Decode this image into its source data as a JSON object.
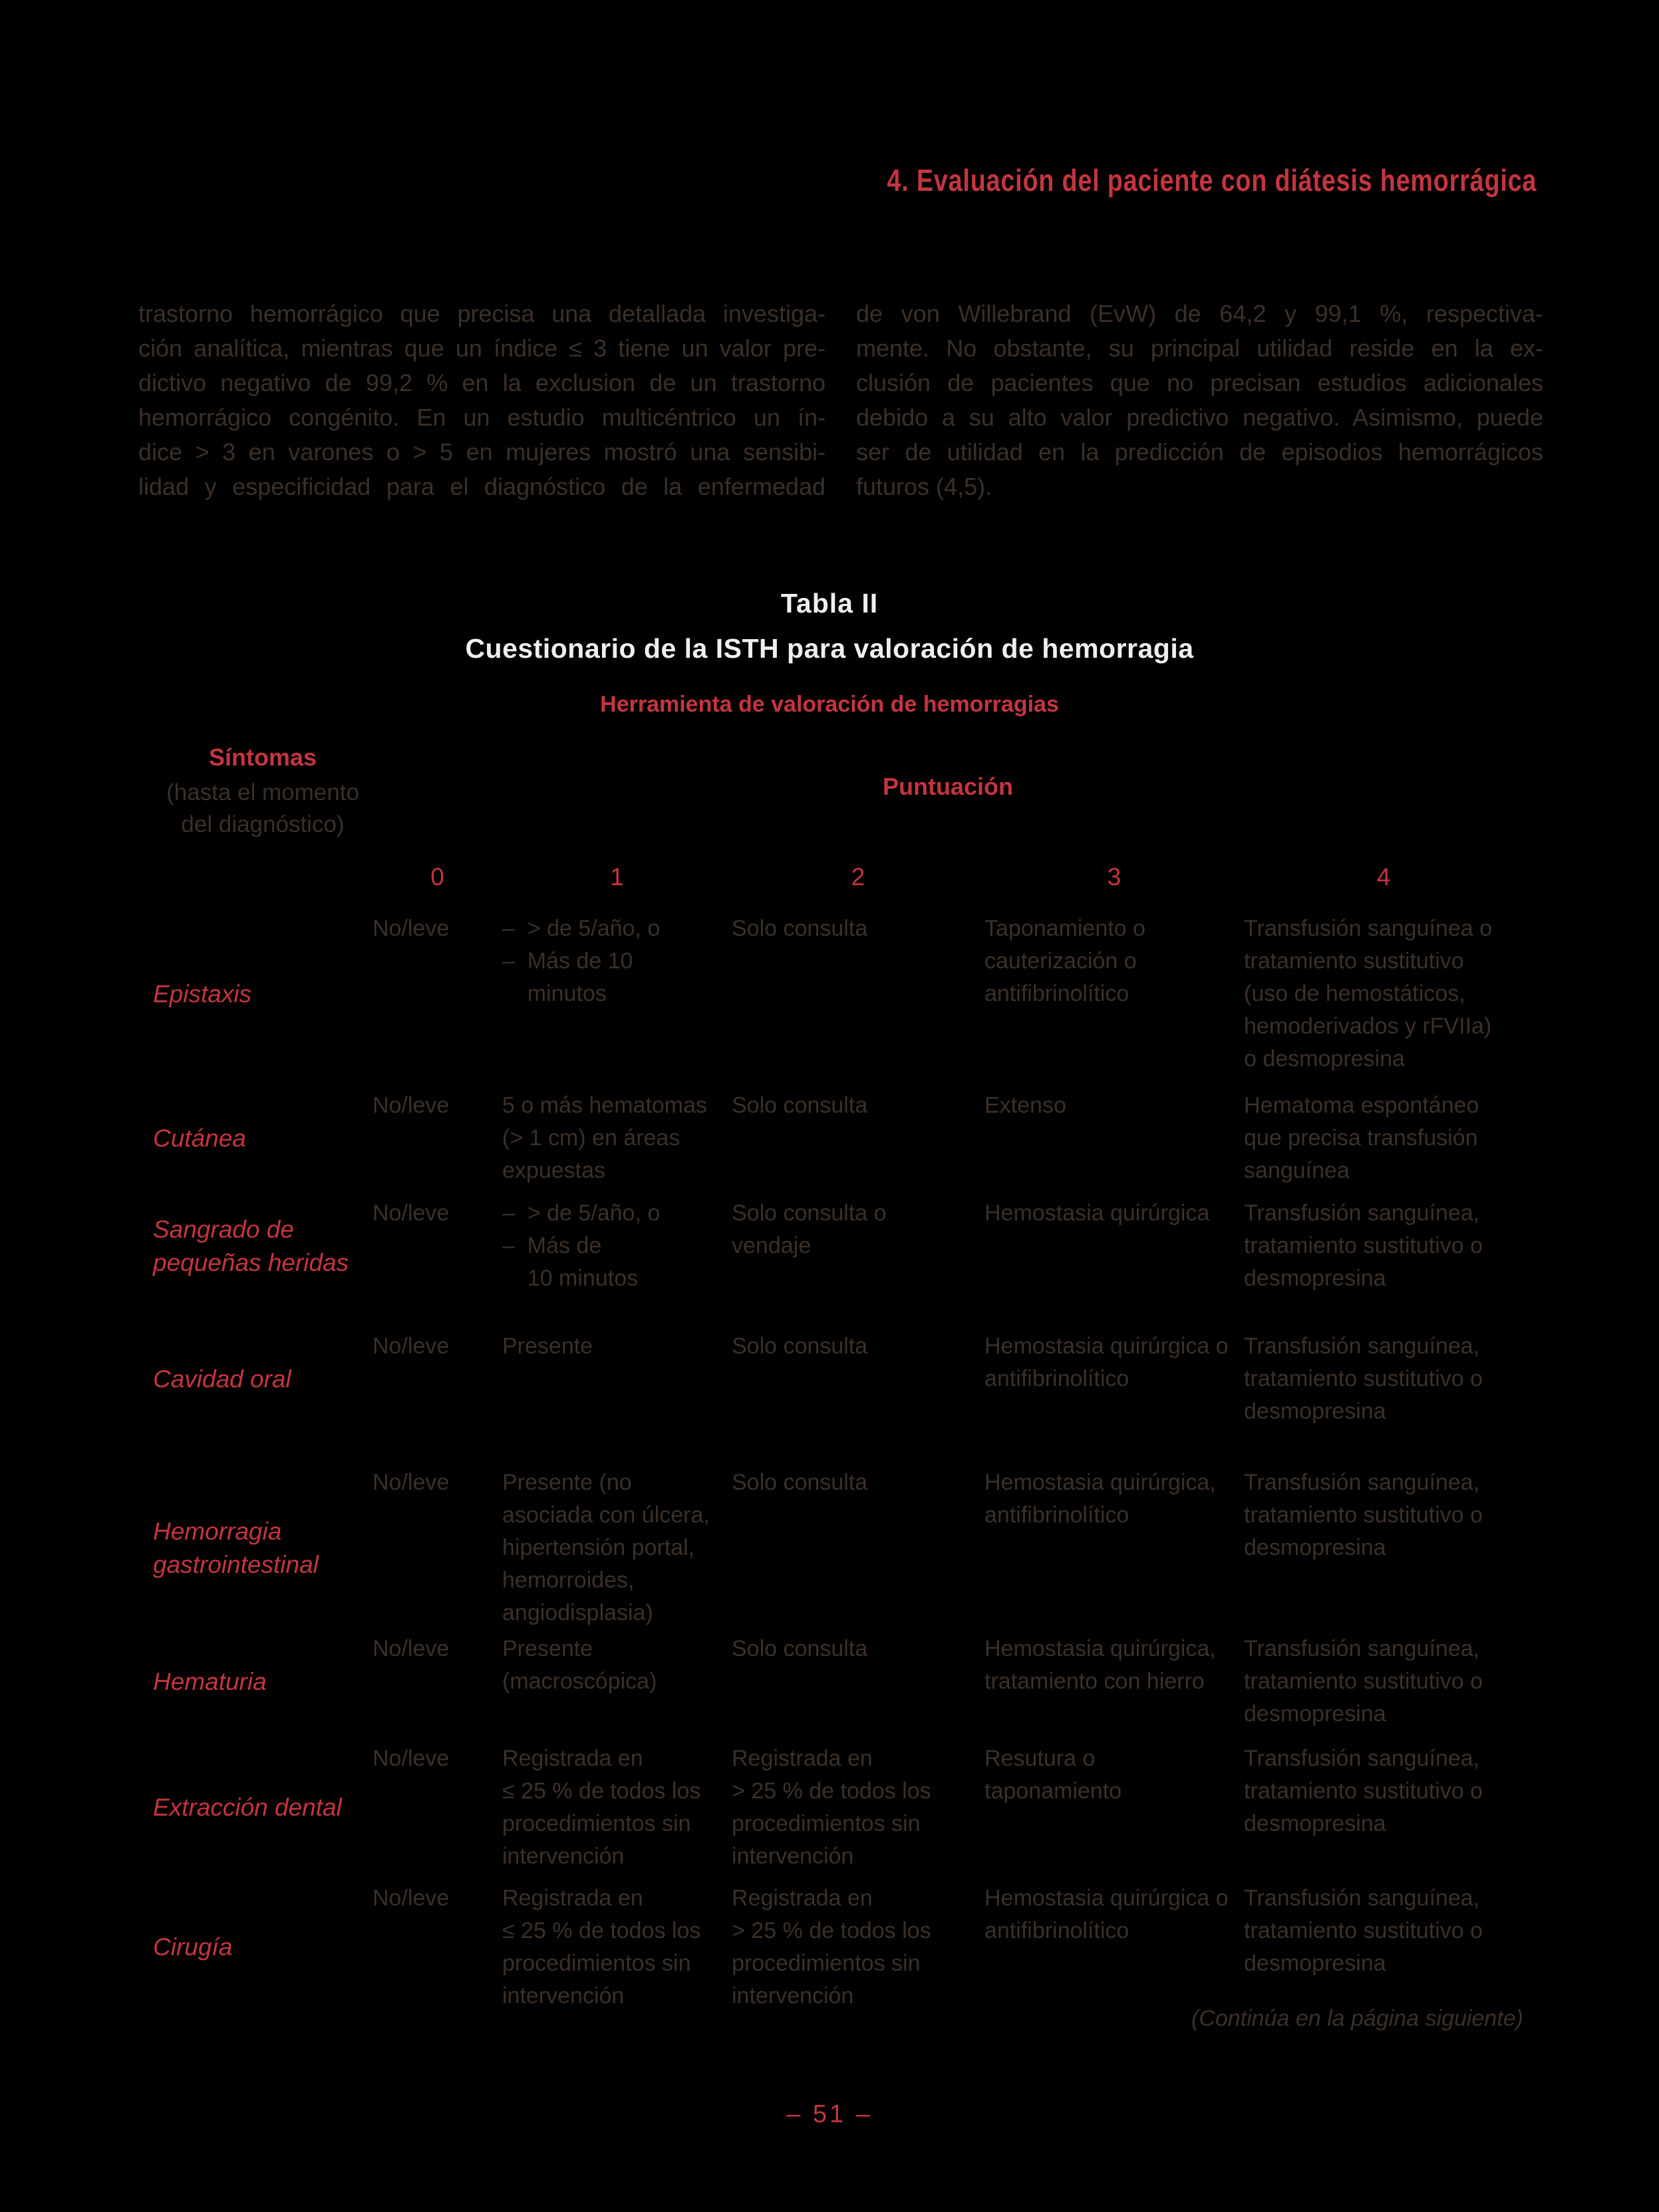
{
  "page": {
    "chapter_header": "4. Evaluación del paciente con diátesis hemorrágica",
    "page_number": "– 51 –"
  },
  "body": {
    "left_lines": [
      "trastorno hemorrágico que precisa una detallada investiga-",
      "ción analítica, mientras que un índice ≤ 3 tiene un valor pre-",
      "dictivo negativo de 99,2 % en la exclusion de un trastorno",
      "hemorrágico congénito. En un estudio multicéntrico un ín-",
      "dice > 3 en varones o > 5 en mujeres mostró una sensibi-",
      "lidad y especificidad para el diagnóstico de la enfermedad"
    ],
    "right_lines": [
      "de von Willebrand (EvW) de 64,2 y 99,1 %, respectiva-",
      "mente. No obstante, su principal utilidad reside en la ex-",
      "clusión de pacientes que no precisan estudios adicionales",
      "debido a su alto valor predictivo negativo. Asimismo, puede",
      "ser de utilidad en la predicción de episodios hemorrágicos",
      "futuros (4,5)."
    ]
  },
  "table": {
    "title_line1": "Tabla II",
    "title_line2": "Cuestionario de la ISTH para valoración de hemorragia",
    "tool_header": "Herramienta de valoración de hemorragias",
    "symptoms_label": "Síntomas",
    "symptoms_note": "(hasta el momento\ndel diagnóstico)",
    "score_label": "Puntuación",
    "score_columns": [
      "0",
      "1",
      "2",
      "3",
      "4"
    ],
    "rows": [
      {
        "symptom": "Epistaxis",
        "c0": "No/leve",
        "c1": "–  > de 5/año, o\n–  Más de 10\n    minutos",
        "c2": "Solo consulta",
        "c3": "Taponamiento o\ncauterización o\nantifibrinolítico",
        "c4": "Transfusión sanguínea o\ntratamiento sustitutivo\n(uso de hemostáticos,\nhemoderivados y rFVIIa)\no desmopresina"
      },
      {
        "symptom": "Cutánea",
        "c0": "No/leve",
        "c1": "5 o más hematomas\n(> 1 cm) en áreas\nexpuestas",
        "c2": "Solo consulta",
        "c3": "Extenso",
        "c4": "Hematoma espontáneo\nque precisa transfusión\nsanguínea"
      },
      {
        "symptom": "Sangrado de\npequeñas heridas",
        "c0": "No/leve",
        "c1": "–  > de 5/año, o\n–  Más de\n    10 minutos",
        "c2": "Solo consulta o\nvendaje",
        "c3": "Hemostasia quirúrgica",
        "c4": "Transfusión sanguínea,\ntratamiento sustitutivo o\ndesmopresina"
      },
      {
        "symptom": "Cavidad oral",
        "c0": "No/leve",
        "c1": "Presente",
        "c2": "Solo consulta",
        "c3": "Hemostasia quirúrgica o\nantifibrinolítico",
        "c4": "Transfusión sanguínea,\ntratamiento sustitutivo o\ndesmopresina"
      },
      {
        "symptom": "Hemorragia\ngastrointestinal",
        "c0": "No/leve",
        "c1": "Presente (no\nasociada con úlcera,\nhipertensión portal,\nhemorroides,\nangiodisplasia)",
        "c2": "Solo consulta",
        "c3": "Hemostasia quirúrgica,\nantifibrinolítico",
        "c4": "Transfusión sanguínea,\ntratamiento sustitutivo o\ndesmopresina"
      },
      {
        "symptom": "Hematuria",
        "c0": "No/leve",
        "c1": "Presente\n(macroscópica)",
        "c2": "Solo consulta",
        "c3": "Hemostasia quirúrgica,\ntratamiento con hierro",
        "c4": "Transfusión sanguínea,\ntratamiento sustitutivo o\ndesmopresina"
      },
      {
        "symptom": "Extracción dental",
        "c0": "No/leve",
        "c1": "Registrada en\n≤ 25 % de todos los\nprocedimientos sin\nintervención",
        "c2": "Registrada en\n> 25 % de todos los\nprocedimientos sin\nintervención",
        "c3": "Resutura o\ntaponamiento",
        "c4": "Transfusión sanguínea,\ntratamiento sustitutivo o\ndesmopresina"
      },
      {
        "symptom": "Cirugía",
        "c0": "No/leve",
        "c1": "Registrada en\n≤ 25 % de todos los\nprocedimientos sin\nintervención",
        "c2": "Registrada en\n> 25 % de todos los\nprocedimientos sin\nintervención",
        "c3": "Hemostasia quirúrgica o\nantifibrinolítico",
        "c4": "Transfusión sanguínea,\ntratamiento sustitutivo o\ndesmopresina"
      }
    ],
    "continuation_note": "(Continúa en la página siguiente)"
  },
  "colors": {
    "accent_red": "#c4353f",
    "body_text": "#3b3028",
    "title_white": "#f0efed",
    "background": "#000000"
  }
}
